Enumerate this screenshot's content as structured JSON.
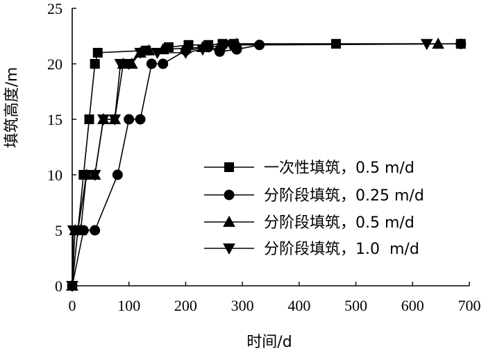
{
  "chart_data": {
    "type": "line",
    "xlabel": "时间/d",
    "ylabel": "填筑高度/m",
    "xlim": [
      0,
      700
    ],
    "ylim": [
      0,
      25
    ],
    "xticks": [
      0,
      100,
      200,
      300,
      400,
      500,
      600,
      700
    ],
    "yticks": [
      0,
      5,
      10,
      15,
      20,
      25
    ],
    "grid": false,
    "legend_position": "right-middle",
    "series": [
      {
        "name": "一次性填筑，0.5 m/d",
        "marker": "square",
        "x": [
          0,
          20,
          30,
          40,
          45,
          130,
          170,
          205,
          240,
          265,
          285,
          465,
          685
        ],
        "y": [
          0,
          10,
          15,
          20,
          21,
          21.2,
          21.5,
          21.7,
          21.7,
          21.8,
          21.8,
          21.8,
          21.8
        ]
      },
      {
        "name": "分阶段填筑，0.25 m/d",
        "marker": "circle",
        "x": [
          0,
          20,
          40,
          80,
          100,
          120,
          140,
          160,
          200,
          240,
          260,
          290,
          330,
          685
        ],
        "y": [
          0,
          5,
          5,
          10,
          15,
          15,
          20,
          20,
          21.2,
          21.5,
          21.1,
          21.3,
          21.7,
          21.8
        ]
      },
      {
        "name": "分阶段填筑，0.5 m/d",
        "marker": "triangle-up",
        "x": [
          0,
          5,
          15,
          25,
          40,
          55,
          75,
          90,
          105,
          120,
          135,
          160,
          200,
          230,
          260,
          290,
          645
        ],
        "y": [
          0,
          5,
          5,
          10,
          10,
          15,
          15,
          20,
          20,
          21,
          21.2,
          21.3,
          21.4,
          21.5,
          21.6,
          21.8,
          21.8
        ]
      },
      {
        "name": "分阶段填筑，1.0  m/d",
        "marker": "triangle-down",
        "x": [
          0,
          2,
          10,
          25,
          40,
          55,
          75,
          85,
          100,
          120,
          150,
          200,
          230,
          265,
          280,
          625
        ],
        "y": [
          0,
          5,
          5,
          10,
          10,
          15,
          15,
          20,
          20,
          21,
          21,
          21,
          21.3,
          21.4,
          21.7,
          21.8
        ]
      }
    ]
  }
}
